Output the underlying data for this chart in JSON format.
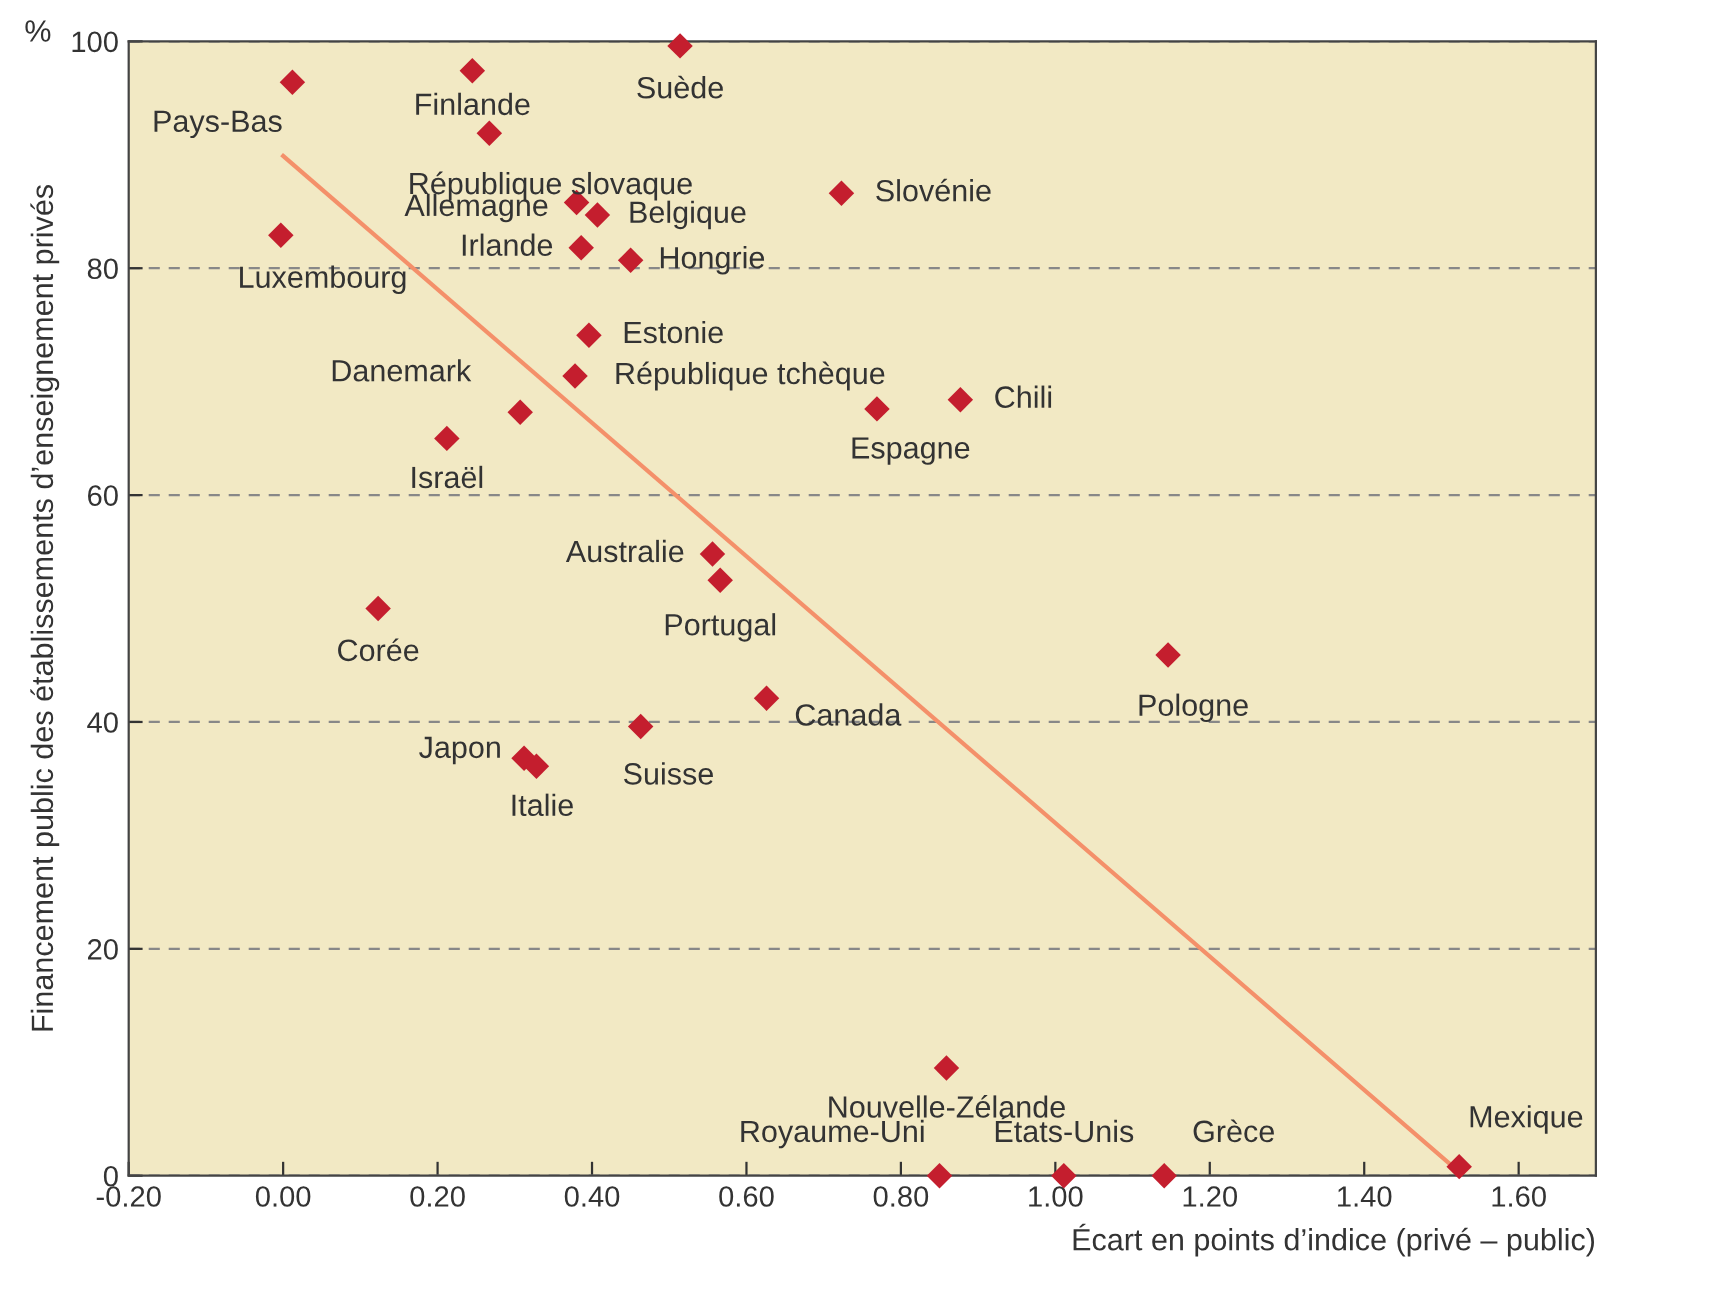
{
  "chart_data": {
    "type": "scatter",
    "xlabel": "Écart en points d’indice (privé – public)",
    "ylabel": "Financement public des établissements d’enseignement privés",
    "xlim": [
      -0.2,
      1.7
    ],
    "ylim": [
      0,
      100
    ],
    "xticks": [
      {
        "value": -0.2,
        "label": "-0.20"
      },
      {
        "value": 0,
        "label": "0.00"
      },
      {
        "value": 0.2,
        "label": "0.20"
      },
      {
        "value": 0.4,
        "label": "0.40"
      },
      {
        "value": 0.6,
        "label": "0.60"
      },
      {
        "value": 0.8,
        "label": "0.80"
      },
      {
        "value": 1.0,
        "label": "1.00"
      },
      {
        "value": 1.2,
        "label": "1.20"
      },
      {
        "value": 1.4,
        "label": "1.40"
      },
      {
        "value": 1.6,
        "label": "1.60"
      }
    ],
    "yticks": [
      0,
      20,
      40,
      60,
      80,
      100
    ],
    "grid": "y",
    "legend": false,
    "marker": "diamond",
    "series": [
      {
        "color": "#c41e2e",
        "x": [
          0.012,
          0.245,
          0.514,
          0.267,
          0.38,
          0.407,
          0.386,
          0.45,
          -0.003,
          0.723,
          0.396,
          0.378,
          0.307,
          0.212,
          0.769,
          0.877,
          0.556,
          0.566,
          0.123,
          0.626,
          0.463,
          0.312,
          0.328,
          1.146,
          0.859,
          0.85,
          1.011,
          1.141,
          1.523
        ],
        "values": [
          96.4,
          97.4,
          99.6,
          91.9,
          85.8,
          84.7,
          81.8,
          80.7,
          82.9,
          86.6,
          74.1,
          70.5,
          67.3,
          65.0,
          67.6,
          68.4,
          54.8,
          52.5,
          50.0,
          42.1,
          39.6,
          36.8,
          36.1,
          45.9,
          9.5,
          0,
          0,
          0,
          0.8
        ]
      },
      {
        "type": "line",
        "color": "#f4906a",
        "line_style": "solid",
        "marker": "none",
        "x": [
          0,
          1.52
        ],
        "values": [
          89.9,
          0.5
        ]
      }
    ],
    "annotations": [
      {
        "text": "Pays-Bas",
        "x": 0.012,
        "y": 96.4
      },
      {
        "text": "Finlande",
        "x": 0.245,
        "y": 97.4
      },
      {
        "text": "Suède",
        "x": 0.514,
        "y": 99.6
      },
      {
        "text": "République slovaque",
        "x": 0.267,
        "y": 91.9
      },
      {
        "text": "Allemagne",
        "x": 0.38,
        "y": 85.8
      },
      {
        "text": "Belgique",
        "x": 0.407,
        "y": 84.7
      },
      {
        "text": "Irlande",
        "x": 0.386,
        "y": 81.8
      },
      {
        "text": "Hongrie",
        "x": 0.45,
        "y": 80.7
      },
      {
        "text": "Luxembourg",
        "x": -0.003,
        "y": 82.9
      },
      {
        "text": "Slovénie",
        "x": 0.723,
        "y": 86.6
      },
      {
        "text": "Estonie",
        "x": 0.396,
        "y": 74.1
      },
      {
        "text": "République tchèque",
        "x": 0.378,
        "y": 70.5
      },
      {
        "text": "Danemark",
        "x": 0.307,
        "y": 67.3
      },
      {
        "text": "Israël",
        "x": 0.212,
        "y": 65.0
      },
      {
        "text": "Espagne",
        "x": 0.769,
        "y": 67.6
      },
      {
        "text": "Chili",
        "x": 0.877,
        "y": 68.4
      },
      {
        "text": "Australie",
        "x": 0.556,
        "y": 54.8
      },
      {
        "text": "Portugal",
        "x": 0.566,
        "y": 52.5
      },
      {
        "text": "Corée",
        "x": 0.123,
        "y": 50.0
      },
      {
        "text": "Canada",
        "x": 0.626,
        "y": 42.1
      },
      {
        "text": "Suisse",
        "x": 0.463,
        "y": 39.6
      },
      {
        "text": "Japon",
        "x": 0.312,
        "y": 36.8
      },
      {
        "text": "Italie",
        "x": 0.328,
        "y": 36.1
      },
      {
        "text": "Pologne",
        "x": 1.146,
        "y": 45.9
      },
      {
        "text": "Nouvelle-Zélande",
        "x": 0.859,
        "y": 9.5
      },
      {
        "text": "Royaume-Uni",
        "x": 0.85,
        "y": 0
      },
      {
        "text": "États-Unis",
        "x": 1.011,
        "y": 0
      },
      {
        "text": "Grèce",
        "x": 1.141,
        "y": 0
      },
      {
        "text": "Mexique",
        "x": 1.523,
        "y": 0.8
      },
      "%"
    ]
  }
}
